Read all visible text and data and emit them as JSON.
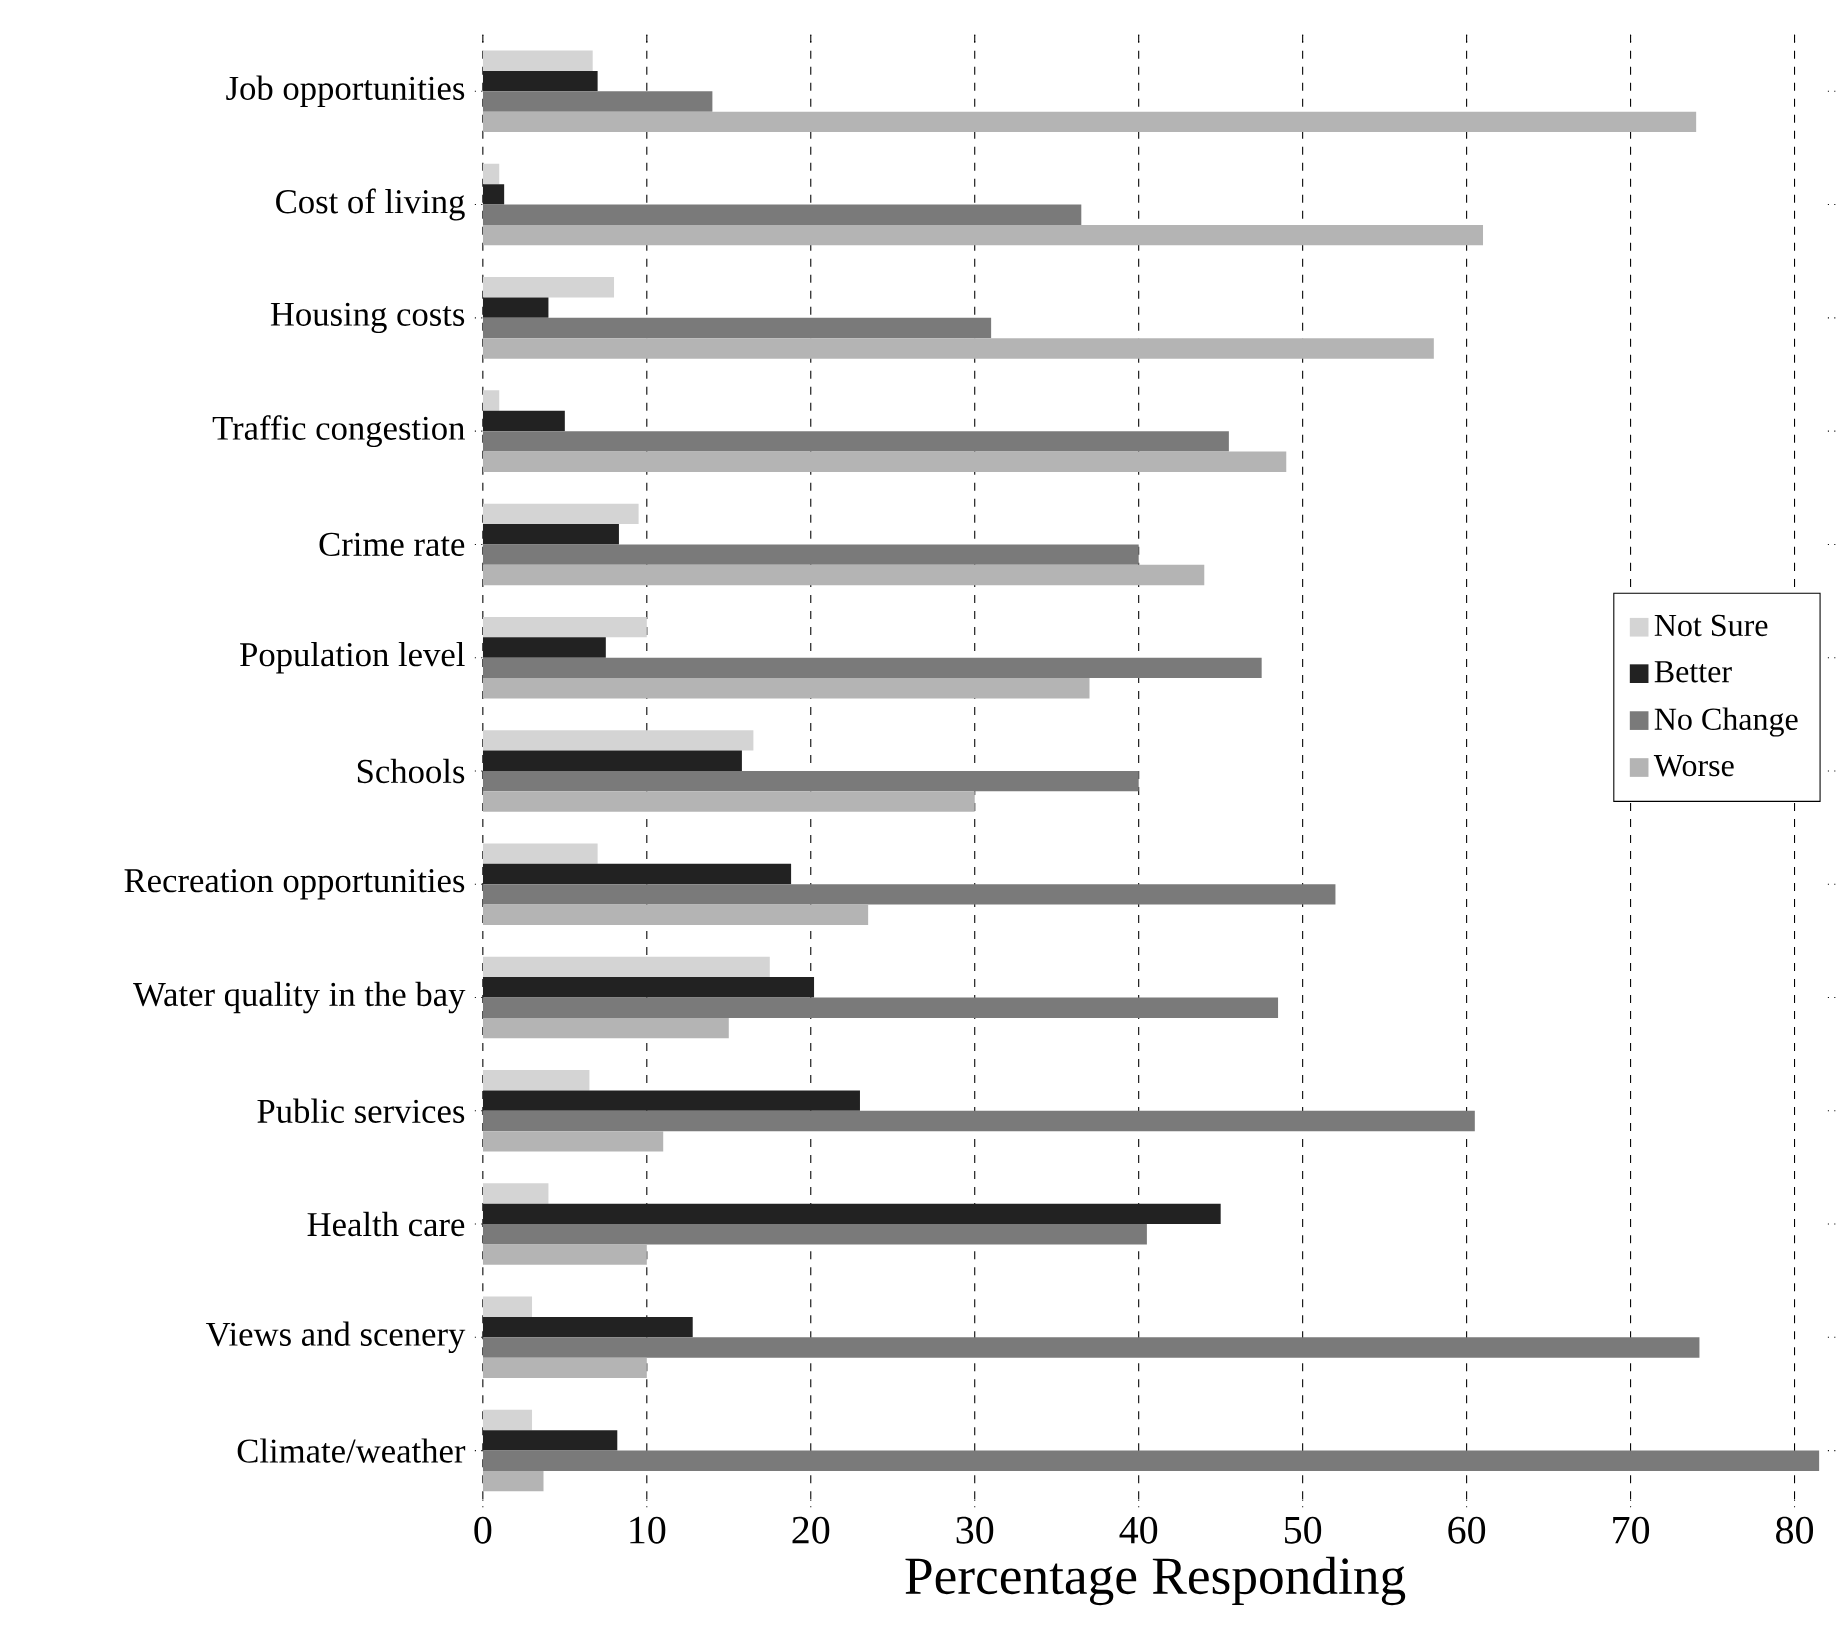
{
  "chart_data": {
    "type": "bar",
    "orientation": "horizontal",
    "xlabel": "Percentage Responding",
    "categories": [
      "Job opportunities",
      "Cost of living",
      "Housing costs",
      "Traffic congestion",
      "Crime rate",
      "Population level",
      "Schools",
      "Recreation opportunities",
      "Water quality in the bay",
      "Public services",
      "Health care",
      "Views and scenery",
      "Climate/weather"
    ],
    "series": [
      {
        "name": "Not Sure",
        "color": "#d4d4d4",
        "values": [
          6.7,
          1,
          8,
          1,
          9.5,
          10,
          16.5,
          7,
          17.5,
          6.5,
          4,
          3,
          3
        ]
      },
      {
        "name": "Better",
        "color": "#222222",
        "values": [
          7,
          1.3,
          4,
          5,
          8.3,
          7.5,
          15.8,
          18.8,
          20.2,
          23,
          45,
          12.8,
          8.2
        ]
      },
      {
        "name": "No Change",
        "color": "#7a7a7a",
        "values": [
          14,
          36.5,
          31,
          45.5,
          40,
          47.5,
          40,
          52,
          48.5,
          60.5,
          40.5,
          74.2,
          81.5
        ]
      },
      {
        "name": "Worse",
        "color": "#b4b4b4",
        "values": [
          74,
          61,
          58,
          49,
          44,
          37,
          30,
          23.5,
          15,
          11,
          10,
          10,
          3.7
        ]
      }
    ],
    "xlim": [
      0,
      82
    ],
    "xticks": [
      0,
      10,
      20,
      30,
      40,
      50,
      60,
      70,
      80
    ],
    "grid": "x",
    "legend": "right"
  }
}
